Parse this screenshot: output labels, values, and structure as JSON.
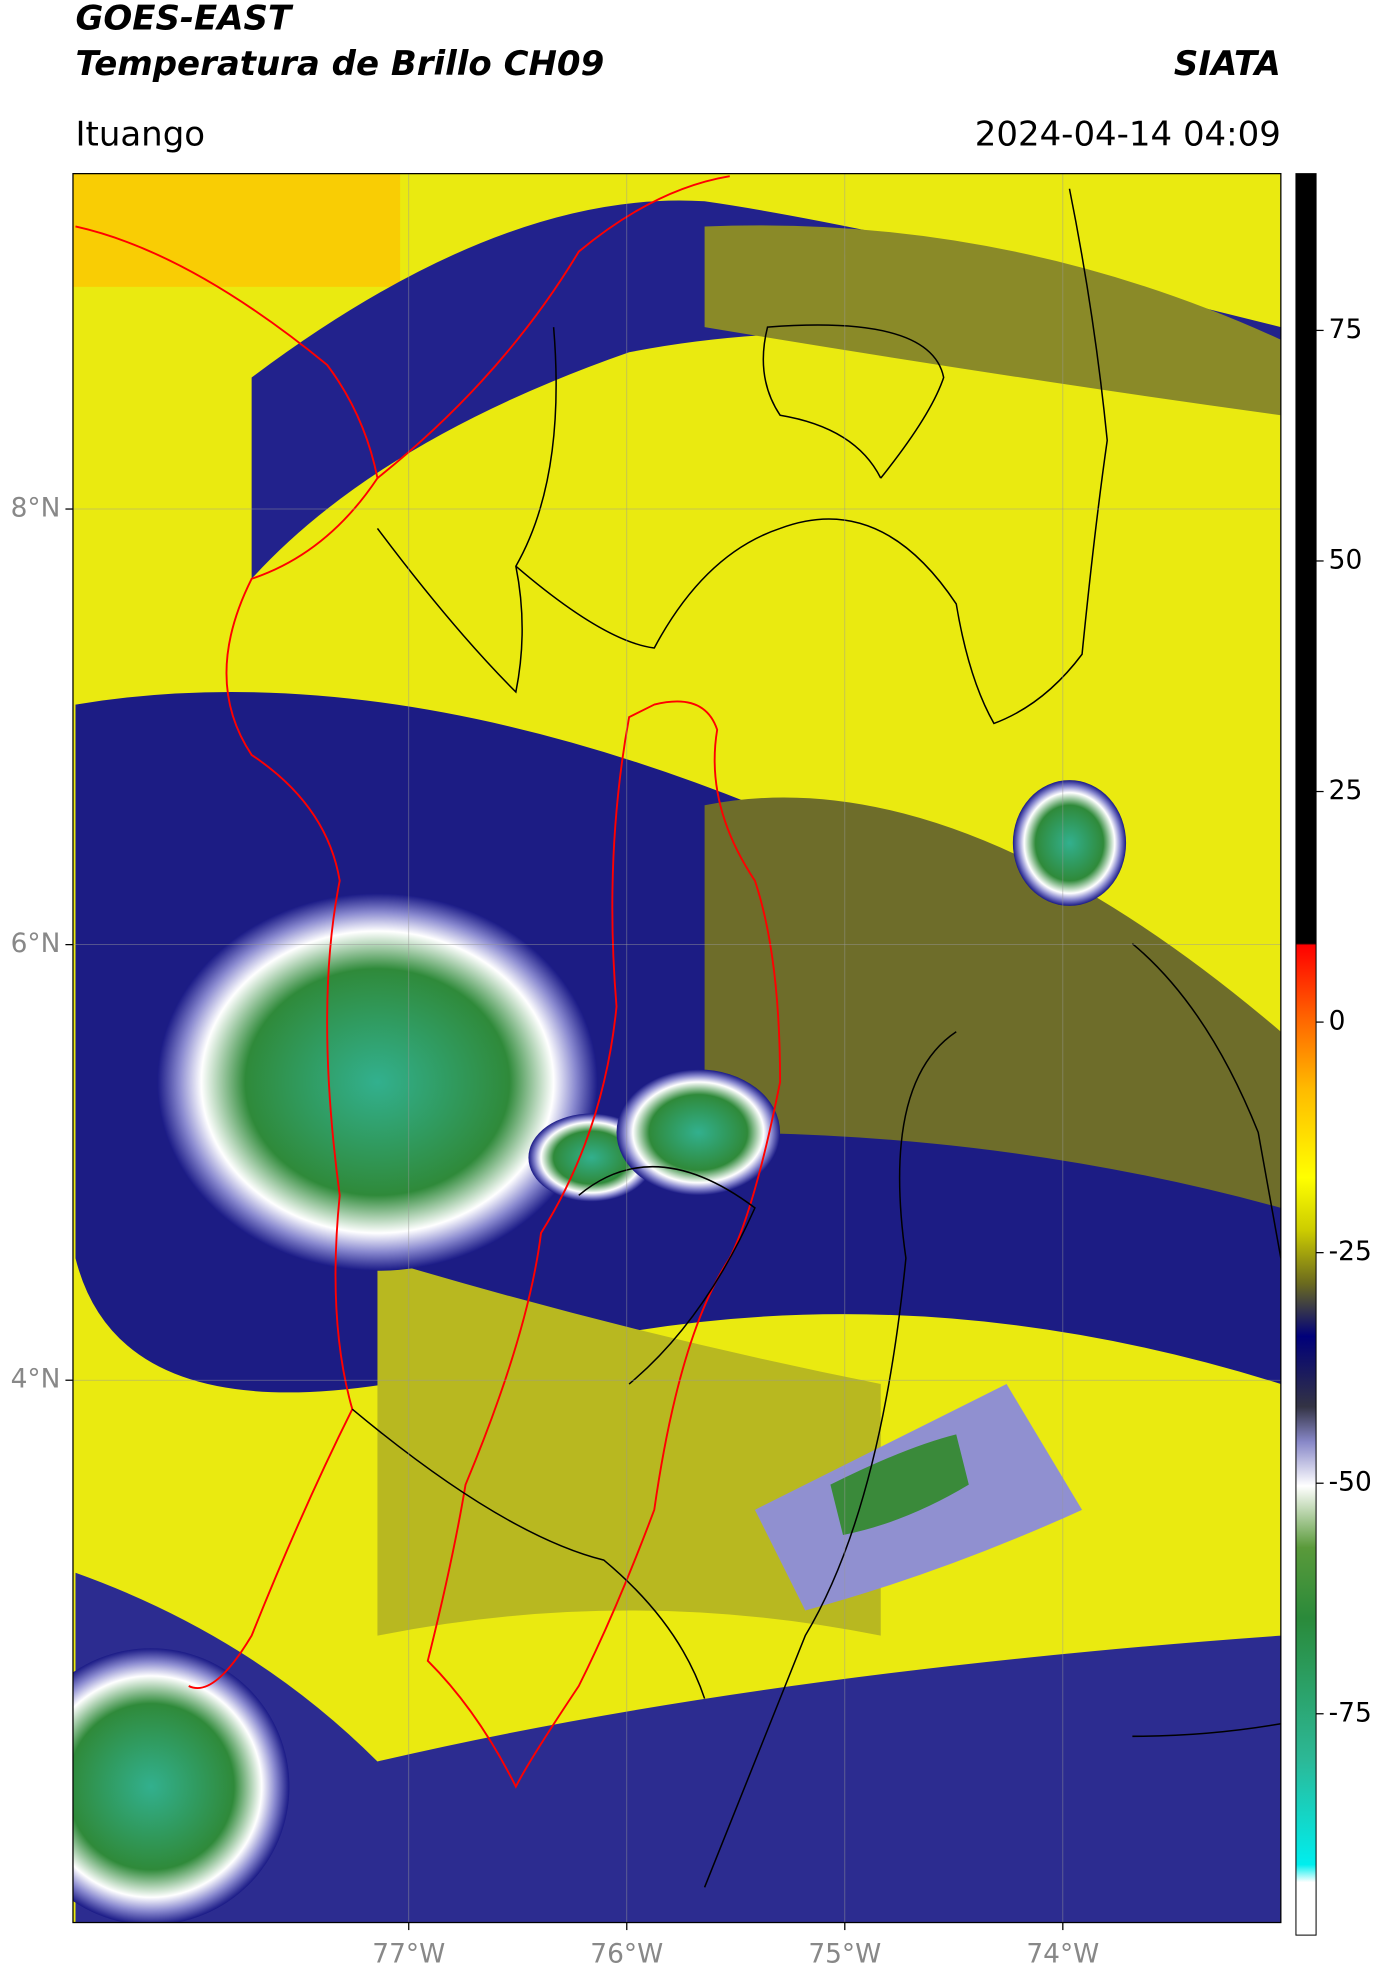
{
  "header": {
    "title": "GOES-EAST",
    "subtitle": "Temperatura de Brillo CH09",
    "source": "SIATA",
    "location": "Ituango",
    "datetime": "2024-04-14 04:09"
  },
  "map": {
    "xlim": [
      -78.54,
      -73.0
    ],
    "ylim": [
      1.51,
      9.54
    ],
    "xticks": [
      {
        "value": -77,
        "label": "77°W"
      },
      {
        "value": -76,
        "label": "76°W"
      },
      {
        "value": -75,
        "label": "75°W"
      },
      {
        "value": -74,
        "label": "74°W"
      }
    ],
    "yticks": [
      {
        "value": 8,
        "label": "8°N"
      },
      {
        "value": 6,
        "label": "6°N"
      },
      {
        "value": 4,
        "label": "4°N"
      }
    ]
  },
  "colorbar": {
    "clim": [
      -99,
      92
    ],
    "ticks": [
      75,
      50,
      25,
      0,
      -25,
      -50,
      -75
    ]
  }
}
